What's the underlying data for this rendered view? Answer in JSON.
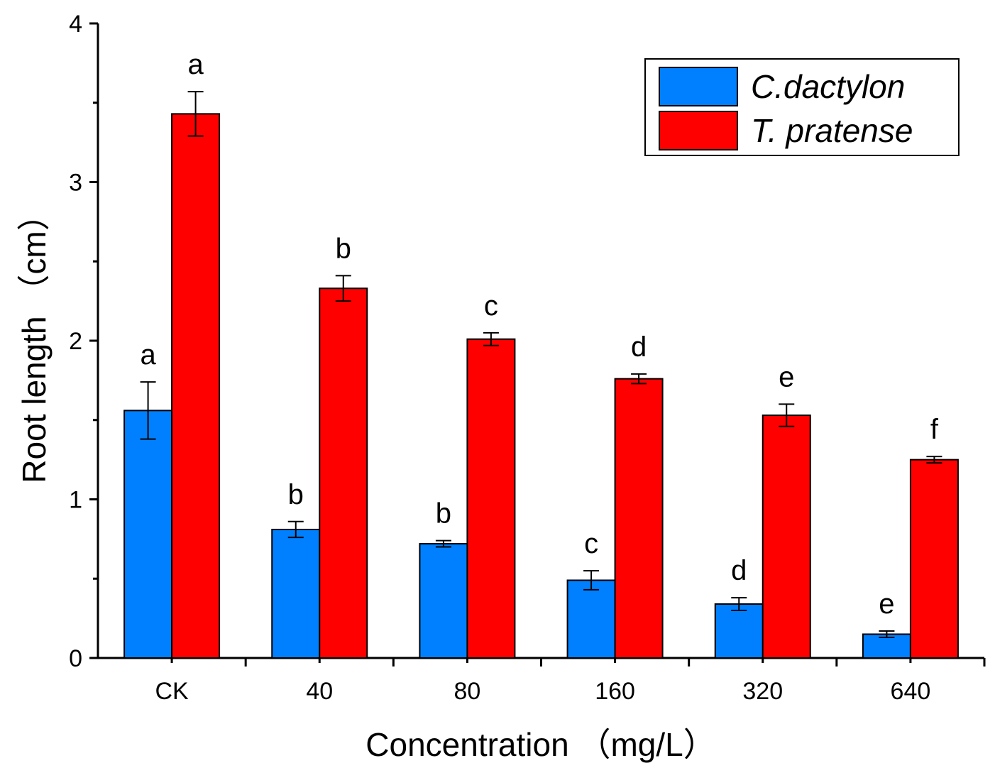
{
  "chart_data": {
    "type": "bar",
    "title": "",
    "xlabel": "Concentration （mg/L）",
    "ylabel": "Root length （cm）",
    "ylim": [
      0,
      4
    ],
    "yticks": [
      "0",
      "1",
      "2",
      "3",
      "4"
    ],
    "categories": [
      "CK",
      "40",
      "80",
      "160",
      "320",
      "640"
    ],
    "legend_position": "top-right",
    "series": [
      {
        "name": "C.dactylon",
        "color": "#0080ff",
        "values": [
          1.56,
          0.81,
          0.72,
          0.49,
          0.34,
          0.15
        ],
        "errors": [
          0.18,
          0.05,
          0.02,
          0.06,
          0.04,
          0.02
        ],
        "labels": [
          "a",
          "b",
          "b",
          "c",
          "d",
          "e"
        ]
      },
      {
        "name": "T. pratense",
        "color": "#ff0000",
        "values": [
          3.43,
          2.33,
          2.01,
          1.76,
          1.53,
          1.25
        ],
        "errors": [
          0.14,
          0.08,
          0.04,
          0.03,
          0.07,
          0.02
        ],
        "labels": [
          "a",
          "b",
          "c",
          "d",
          "e",
          "f"
        ]
      }
    ]
  }
}
